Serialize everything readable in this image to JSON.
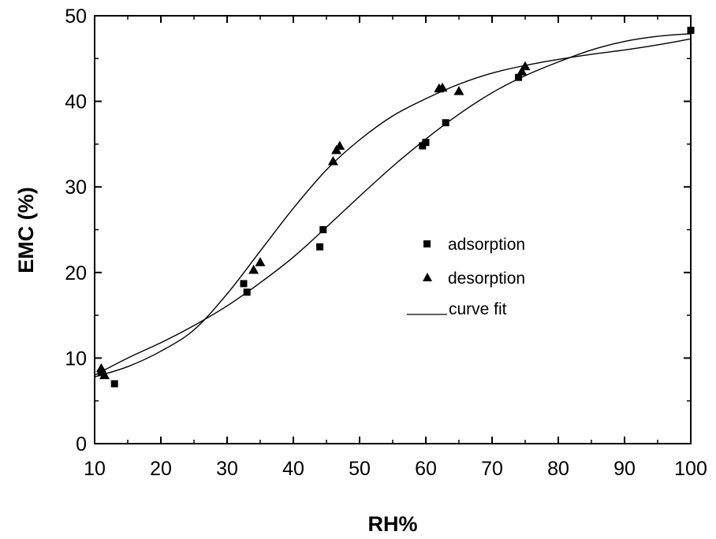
{
  "chart_data": {
    "type": "scatter",
    "xlabel": "RH%",
    "ylabel": "EMC (%)",
    "xlim": [
      10,
      100
    ],
    "ylim": [
      0,
      50
    ],
    "x_ticks": [
      "10",
      "20",
      "30",
      "40",
      "50",
      "60",
      "70",
      "80",
      "90",
      "100"
    ],
    "y_ticks": [
      "0",
      "10",
      "20",
      "30",
      "40",
      "50"
    ],
    "grid": false,
    "legend_position": "center-right",
    "series": [
      {
        "name": "adsorption",
        "marker": "square",
        "color": "#000000",
        "points": [
          [
            11,
            8.3
          ],
          [
            13,
            7.0
          ],
          [
            32.5,
            18.7
          ],
          [
            33,
            17.7
          ],
          [
            44,
            23.0
          ],
          [
            44.5,
            25.0
          ],
          [
            59.5,
            34.8
          ],
          [
            60,
            35.2
          ],
          [
            63,
            37.5
          ],
          [
            74,
            42.8
          ],
          [
            100,
            48.3
          ]
        ]
      },
      {
        "name": "desorption",
        "marker": "triangle",
        "color": "#000000",
        "points": [
          [
            11,
            8.8
          ],
          [
            11.5,
            8.0
          ],
          [
            34,
            20.3
          ],
          [
            35,
            21.2
          ],
          [
            46,
            33.0
          ],
          [
            46.5,
            34.3
          ],
          [
            47,
            34.8
          ],
          [
            62,
            41.5
          ],
          [
            62.5,
            41.6
          ],
          [
            65,
            41.2
          ],
          [
            74.5,
            43.5
          ],
          [
            75,
            44.1
          ]
        ]
      },
      {
        "name": "curve fit",
        "style": "line",
        "color": "#000000",
        "curves": [
          [
            [
              10,
              7.8
            ],
            [
              15,
              9.0
            ],
            [
              20,
              10.8
            ],
            [
              25,
              13.3
            ],
            [
              30,
              17.5
            ],
            [
              35,
              22.5
            ],
            [
              40,
              27.5
            ],
            [
              45,
              32.0
            ],
            [
              50,
              35.5
            ],
            [
              55,
              38.3
            ],
            [
              60,
              40.3
            ],
            [
              65,
              42.0
            ],
            [
              70,
              43.3
            ],
            [
              75,
              44.2
            ],
            [
              80,
              44.9
            ],
            [
              85,
              45.5
            ],
            [
              90,
              46.0
            ],
            [
              95,
              46.6
            ],
            [
              100,
              47.3
            ]
          ],
          [
            [
              10,
              8.0
            ],
            [
              15,
              10.0
            ],
            [
              20,
              11.8
            ],
            [
              25,
              13.8
            ],
            [
              30,
              16.1
            ],
            [
              35,
              18.8
            ],
            [
              40,
              21.8
            ],
            [
              45,
              25.3
            ],
            [
              50,
              28.9
            ],
            [
              55,
              32.4
            ],
            [
              60,
              35.6
            ],
            [
              65,
              38.5
            ],
            [
              70,
              41.0
            ],
            [
              75,
              43.0
            ],
            [
              80,
              44.6
            ],
            [
              85,
              46.0
            ],
            [
              90,
              47.0
            ],
            [
              95,
              47.6
            ],
            [
              100,
              47.9
            ]
          ]
        ]
      }
    ]
  }
}
